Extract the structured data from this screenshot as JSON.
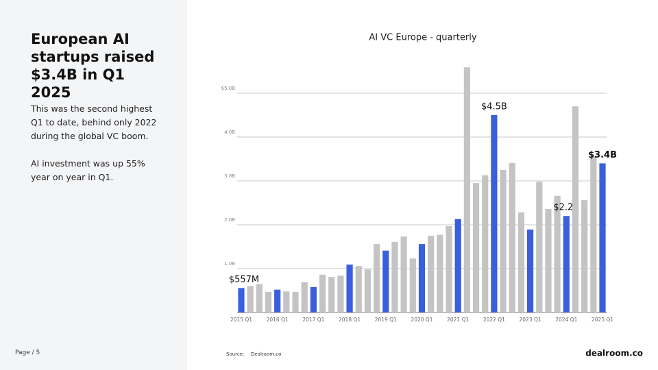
{
  "slide": {
    "heading": "European AI startups raised $3.4B in Q1 2025",
    "paragraphs": [
      "This was the second highest Q1 to date, behind only 2022 during the global VC boom.",
      "AI investment was up 55% year on year in Q1."
    ],
    "page_label": "Page / 5",
    "source_label": "Source:",
    "source": "Dealroom.co",
    "logo": "dealroom.co"
  },
  "chart_data": {
    "type": "bar",
    "title": "AI VC Europe - quarterly",
    "categories": [
      "2015 Q1",
      null,
      null,
      null,
      "2016 Q1",
      null,
      null,
      null,
      "2017 Q1",
      null,
      null,
      null,
      "2018 Q1",
      null,
      null,
      null,
      "2019 Q1",
      null,
      null,
      null,
      "2020 Q1",
      null,
      null,
      null,
      "2021 Q1",
      null,
      null,
      null,
      "2022 Q1",
      null,
      null,
      null,
      "2023 Q1",
      null,
      null,
      null,
      "2024 Q1",
      null,
      null,
      null,
      "2025 Q1"
    ],
    "values": [
      0.557,
      0.6,
      0.65,
      0.47,
      0.52,
      0.48,
      0.47,
      0.69,
      0.58,
      0.86,
      0.81,
      0.84,
      1.09,
      1.06,
      0.98,
      1.56,
      1.41,
      1.61,
      1.73,
      1.23,
      1.56,
      1.75,
      1.77,
      1.97,
      2.13,
      5.59,
      2.95,
      3.13,
      4.5,
      3.25,
      3.41,
      2.28,
      1.89,
      2.98,
      2.36,
      2.66,
      2.2,
      4.7,
      2.56,
      3.55,
      3.4
    ],
    "value_labels": [
      "$557M",
      null,
      null,
      null,
      null,
      null,
      null,
      null,
      null,
      null,
      null,
      null,
      null,
      null,
      null,
      null,
      null,
      null,
      null,
      null,
      null,
      null,
      null,
      null,
      null,
      null,
      null,
      null,
      "$4.5B",
      null,
      null,
      null,
      null,
      null,
      null,
      null,
      "$2.2B",
      null,
      null,
      null,
      "$3.4B"
    ],
    "colors": [
      "#3a5fdc",
      "#c4c4c4",
      "#c4c4c4",
      "#c4c4c4",
      "#3a5fdc",
      "#c4c4c4",
      "#c4c4c4",
      "#c4c4c4",
      "#3a5fdc",
      "#c4c4c4",
      "#c4c4c4",
      "#c4c4c4",
      "#3a5fdc",
      "#c4c4c4",
      "#c4c4c4",
      "#c4c4c4",
      "#3a5fdc",
      "#c4c4c4",
      "#c4c4c4",
      "#c4c4c4",
      "#3a5fdc",
      "#c4c4c4",
      "#c4c4c4",
      "#c4c4c4",
      "#3a5fdc",
      "#c4c4c4",
      "#c4c4c4",
      "#c4c4c4",
      "#3a5fdc",
      "#c4c4c4",
      "#c4c4c4",
      "#c4c4c4",
      "#3a5fdc",
      "#c4c4c4",
      "#c4c4c4",
      "#c4c4c4",
      "#3a5fdc",
      "#c4c4c4",
      "#c4c4c4",
      "#c4c4c4",
      "#3a5fdc"
    ],
    "ylim": [
      0,
      5.6
    ],
    "yticks": [
      {
        "value": 1,
        "label": "1.0B"
      },
      {
        "value": 2,
        "label": "2.0B"
      },
      {
        "value": 3,
        "label": "3.0B"
      },
      {
        "value": 4,
        "label": "4.0B"
      },
      {
        "value": 5,
        "label": "$5.0B"
      }
    ],
    "grid": true
  }
}
